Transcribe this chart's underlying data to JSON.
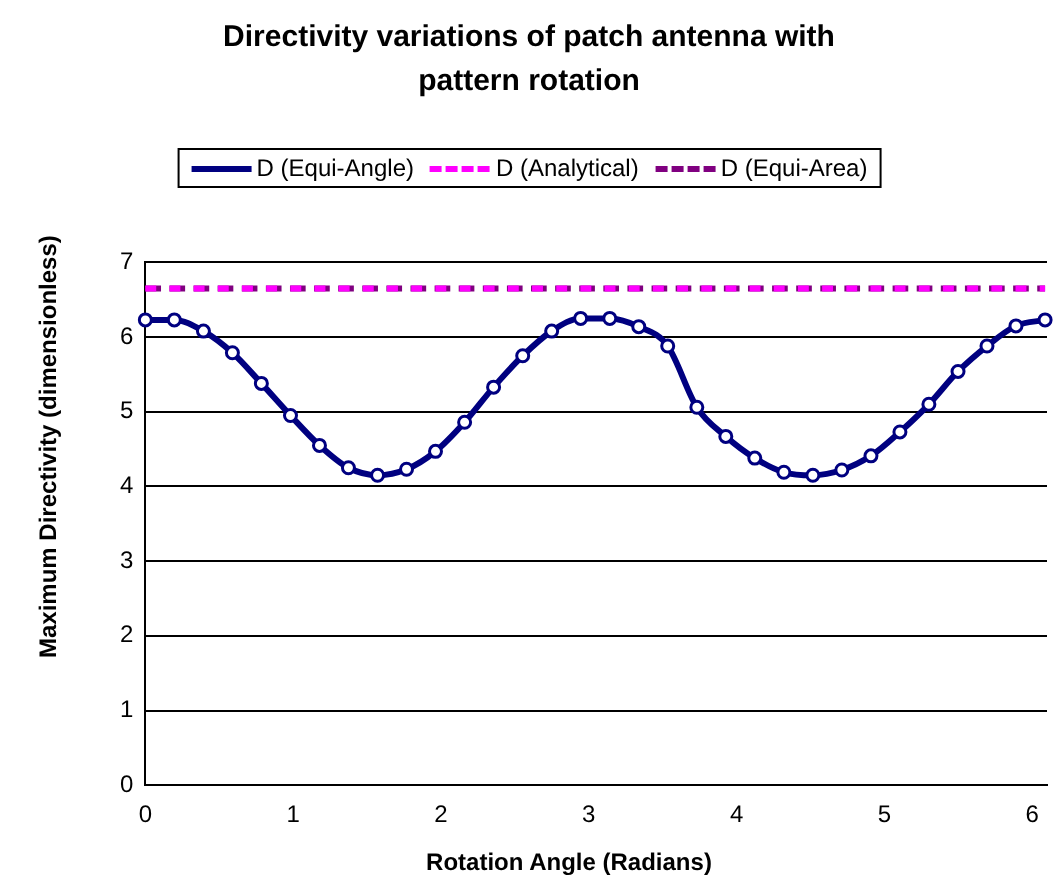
{
  "chart_data": {
    "type": "line",
    "title": "Directivity variations of patch antenna with pattern rotation",
    "xlabel": "Rotation Angle (Radians)",
    "ylabel": "Maximum Directivity (dimensionless)",
    "x": [
      0,
      0.196,
      0.393,
      0.589,
      0.785,
      0.982,
      1.178,
      1.374,
      1.571,
      1.767,
      1.963,
      2.16,
      2.356,
      2.553,
      2.749,
      2.945,
      3.142,
      3.338,
      3.534,
      3.731,
      3.927,
      4.123,
      4.32,
      4.516,
      4.712,
      4.909,
      5.105,
      5.301,
      5.498,
      5.694,
      5.89,
      6.087
    ],
    "series": [
      {
        "name": "D (Equi-Angle)",
        "color": "#000080",
        "marker": "circle",
        "line_style": "solid",
        "values": [
          6.23,
          6.23,
          6.08,
          5.79,
          5.38,
          4.95,
          4.55,
          4.25,
          4.15,
          4.23,
          4.47,
          4.86,
          5.33,
          5.75,
          6.08,
          6.25,
          6.25,
          6.14,
          5.88,
          5.06,
          4.67,
          4.38,
          4.19,
          4.15,
          4.22,
          4.41,
          4.73,
          5.1,
          5.54,
          5.88,
          6.15,
          6.23
        ]
      },
      {
        "name": "D (Analytical)",
        "color": "#ff00ff",
        "marker": "none",
        "line_style": "dashed",
        "values": [
          6.65,
          6.65,
          6.65,
          6.65,
          6.65,
          6.65,
          6.65,
          6.65,
          6.65,
          6.65,
          6.65,
          6.65,
          6.65,
          6.65,
          6.65,
          6.65,
          6.65,
          6.65,
          6.65,
          6.65,
          6.65,
          6.65,
          6.65,
          6.65,
          6.65,
          6.65,
          6.65,
          6.65,
          6.65,
          6.65,
          6.65,
          6.65
        ]
      },
      {
        "name": "D (Equi-Area)",
        "color": "#800080",
        "marker": "none",
        "line_style": "dashed",
        "values": [
          6.65,
          6.65,
          6.65,
          6.65,
          6.65,
          6.65,
          6.65,
          6.65,
          6.65,
          6.65,
          6.65,
          6.65,
          6.65,
          6.65,
          6.65,
          6.65,
          6.65,
          6.65,
          6.65,
          6.65,
          6.65,
          6.65,
          6.65,
          6.65,
          6.65,
          6.65,
          6.65,
          6.65,
          6.65,
          6.65,
          6.65,
          6.65
        ]
      }
    ],
    "xlim": [
      0,
      6.1
    ],
    "xticks": [
      0,
      1,
      2,
      3,
      4,
      5,
      6
    ],
    "ylim": [
      0,
      7
    ],
    "yticks": [
      0,
      1,
      2,
      3,
      4,
      5,
      6,
      7
    ],
    "grid": "y",
    "legend": "top"
  }
}
